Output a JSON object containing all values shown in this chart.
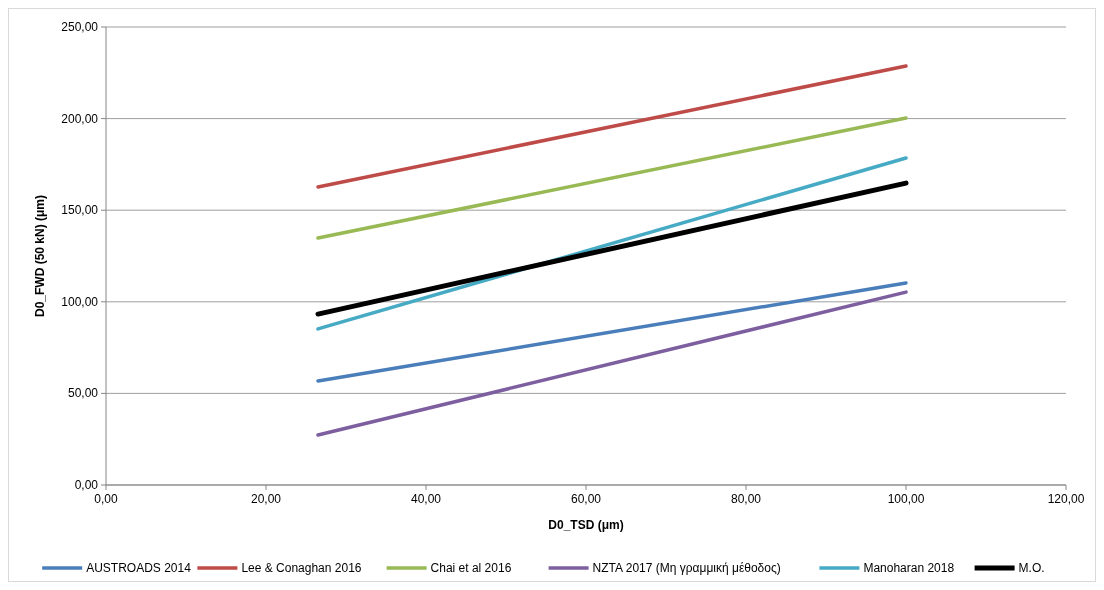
{
  "chart_data": {
    "type": "line",
    "xlabel": "D0_TSD (μm)",
    "ylabel": "D0_FWD (50 kN) (μm)",
    "xlim": [
      0,
      120
    ],
    "xticks": [
      {
        "value": 0,
        "label": "0,00"
      },
      {
        "value": 20,
        "label": "20,00"
      },
      {
        "value": 40,
        "label": "40,00"
      },
      {
        "value": 60,
        "label": "60,00"
      },
      {
        "value": 80,
        "label": "80,00"
      },
      {
        "value": 100,
        "label": "100,00"
      },
      {
        "value": 120,
        "label": "120,00"
      }
    ],
    "ylim": [
      0,
      250
    ],
    "yticks": [
      {
        "value": 0,
        "label": "0,00"
      },
      {
        "value": 50,
        "label": "50,00"
      },
      {
        "value": 100,
        "label": "100,00"
      },
      {
        "value": 150,
        "label": "150,00"
      },
      {
        "value": 200,
        "label": "200,00"
      },
      {
        "value": 250,
        "label": "250,00"
      }
    ],
    "x": [
      26.5,
      100
    ],
    "grid": "y",
    "legend": "bottom",
    "marker": "none",
    "line_style": "solid",
    "series": [
      {
        "name": "AUSTROADS 2014",
        "color": "#4a7ebb",
        "values": [
          56.8,
          110.3
        ]
      },
      {
        "name": "Lee & Conaghan 2016",
        "color": "#be4b48",
        "values": [
          162.7,
          228.7
        ]
      },
      {
        "name": "Chai et al 2016",
        "color": "#98b954",
        "values": [
          134.8,
          200.3
        ]
      },
      {
        "name": "NZTA 2017 (Μη γραμμική μέθοδος)",
        "color": "#7d5fa0",
        "values": [
          27.3,
          105.3
        ]
      },
      {
        "name": "Manoharan 2018",
        "color": "#46aac5",
        "values": [
          85.2,
          178.5
        ]
      },
      {
        "name": "M.O.",
        "color": "#000000",
        "values": [
          93.3,
          164.8
        ]
      }
    ]
  }
}
